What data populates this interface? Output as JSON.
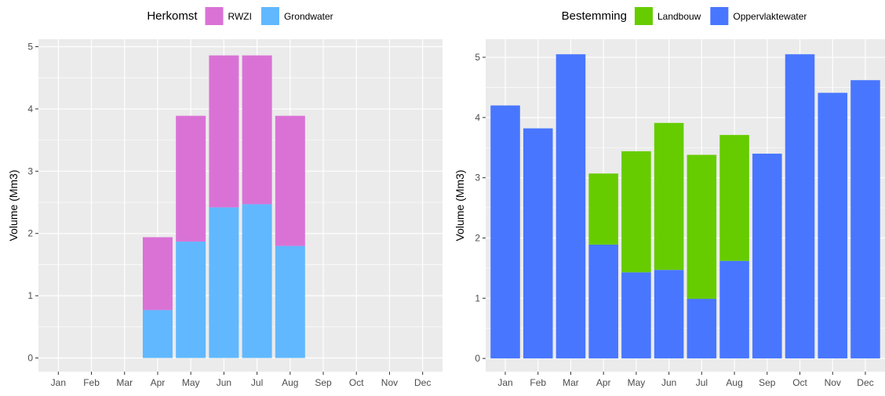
{
  "chart_data": [
    {
      "type": "bar",
      "stacked": true,
      "legend": {
        "position": "top",
        "title": "Herkomst",
        "entries": [
          {
            "name": "RWZI",
            "color": "#DA72D6"
          },
          {
            "name": "Grondwater",
            "color": "#61B8FE"
          }
        ]
      },
      "ylabel": "Volume (Mm3)",
      "ylim": [
        -0.22,
        5.12
      ],
      "yticks": [
        0,
        1,
        2,
        3,
        4,
        5
      ],
      "grid": true,
      "categories": [
        "Jan",
        "Feb",
        "Mar",
        "Apr",
        "May",
        "Jun",
        "Jul",
        "Aug",
        "Sep",
        "Oct",
        "Nov",
        "Dec"
      ],
      "series": [
        {
          "name": "Grondwater",
          "color": "#61B8FE",
          "values": [
            0,
            0,
            0,
            0.77,
            1.87,
            2.42,
            2.47,
            1.8,
            0,
            0,
            0,
            0
          ]
        },
        {
          "name": "RWZI",
          "color": "#DA72D6",
          "values": [
            0,
            0,
            0,
            1.17,
            2.02,
            2.44,
            2.39,
            2.09,
            0,
            0,
            0,
            0
          ]
        }
      ]
    },
    {
      "type": "bar",
      "stacked": true,
      "legend": {
        "position": "top",
        "title": "Bestemming",
        "entries": [
          {
            "name": "Landbouw",
            "color": "#66CC00"
          },
          {
            "name": "Oppervlaktewater",
            "color": "#4876FF"
          }
        ]
      },
      "ylabel": "Volume (Mm3)",
      "ylim": [
        -0.22,
        5.3
      ],
      "yticks": [
        0,
        1,
        2,
        3,
        4,
        5
      ],
      "grid": true,
      "categories": [
        "Jan",
        "Feb",
        "Mar",
        "Apr",
        "May",
        "Jun",
        "Jul",
        "Aug",
        "Sep",
        "Oct",
        "Nov",
        "Dec"
      ],
      "series": [
        {
          "name": "Oppervlaktewater",
          "color": "#4876FF",
          "values": [
            4.2,
            3.82,
            5.05,
            1.89,
            1.43,
            1.47,
            0.99,
            1.62,
            3.4,
            5.05,
            4.41,
            4.62
          ]
        },
        {
          "name": "Landbouw",
          "color": "#66CC00",
          "values": [
            0,
            0,
            0,
            1.18,
            2.01,
            2.44,
            2.39,
            2.09,
            0,
            0,
            0,
            0
          ]
        }
      ]
    }
  ]
}
